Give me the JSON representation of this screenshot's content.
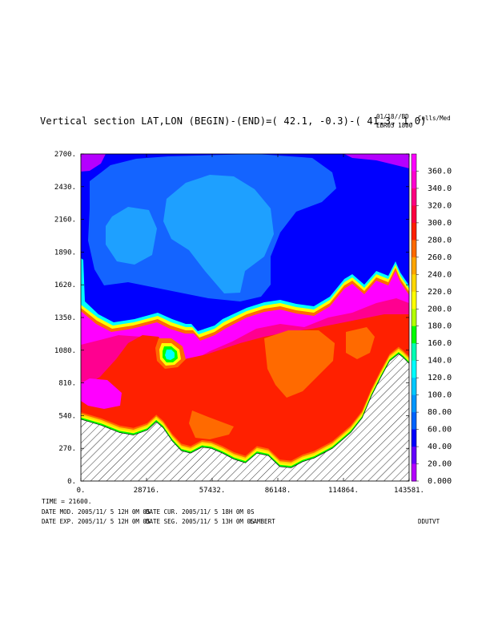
{
  "header": {
    "title": "Vertical section LAT,LON (BEGIN)-(END)=( 42.1, -0.3)-( 41.3,  1.0)",
    "date_line": "01/18//BD",
    "run_line": "EBR05 1800",
    "units": "Cells/Med"
  },
  "chart_data": {
    "type": "heatmap",
    "title": "Vertical section LAT,LON (BEGIN)-(END)=( 42.1, -0.3)-( 41.3,  1.0)",
    "xlabel": "",
    "ylabel": "",
    "x_ticks": [
      "0.",
      "28716.",
      "57432.",
      "86148.",
      "114864.",
      "143581."
    ],
    "x_tick_values": [
      0,
      28716,
      57432,
      86148,
      114864,
      143581
    ],
    "y_ticks": [
      "0.",
      "270.",
      "540.",
      "810.",
      "1080.",
      "1350.",
      "1620.",
      "1890.",
      "2160.",
      "2430.",
      "2700."
    ],
    "y_tick_values": [
      0,
      270,
      540,
      810,
      1080,
      1350,
      1620,
      1890,
      2160,
      2430,
      2700
    ],
    "xlim": [
      0,
      143581
    ],
    "ylim": [
      0,
      2700
    ],
    "colorbar": {
      "labels": [
        "360.0",
        "340.0",
        "320.0",
        "300.0",
        "280.0",
        "260.0",
        "240.0",
        "220.0",
        "200.0",
        "180.0",
        "160.0",
        "140.0",
        "120.0",
        "100.0",
        "80.00",
        "60.00",
        "40.00",
        "20.00",
        "0.000"
      ],
      "colors": [
        "#ff00ff",
        "#ff00d0",
        "#ff0080",
        "#ff0040",
        "#ff2000",
        "#ff6a00",
        "#ffa500",
        "#ffd700",
        "#ffff00",
        "#b4ff00",
        "#00ff00",
        "#00ffb4",
        "#00ffff",
        "#00c8ff",
        "#0096ff",
        "#0064ff",
        "#0000ff",
        "#6400ff",
        "#b400ff"
      ]
    },
    "region_colors": {
      "light_blue": "#1ea0ff",
      "mid_blue": "#1464ff",
      "deep_blue": "#0000ff",
      "purple": "#b400ff",
      "pink": "#ff00ff",
      "magenta": "#ff0090",
      "red": "#ff2000",
      "orange": "#ff6a00",
      "terrain_hatch": "#000000"
    },
    "terrain": [
      [
        0,
        510
      ],
      [
        9000,
        460
      ],
      [
        17000,
        400
      ],
      [
        23000,
        380
      ],
      [
        29000,
        420
      ],
      [
        33000,
        490
      ],
      [
        36000,
        440
      ],
      [
        40000,
        330
      ],
      [
        44000,
        250
      ],
      [
        48000,
        230
      ],
      [
        53000,
        280
      ],
      [
        57000,
        270
      ],
      [
        62000,
        230
      ],
      [
        67000,
        180
      ],
      [
        72000,
        150
      ],
      [
        77000,
        230
      ],
      [
        82000,
        210
      ],
      [
        87000,
        120
      ],
      [
        92000,
        110
      ],
      [
        97000,
        160
      ],
      [
        102000,
        190
      ],
      [
        110000,
        270
      ],
      [
        118000,
        400
      ],
      [
        123000,
        520
      ],
      [
        127000,
        700
      ],
      [
        131000,
        850
      ],
      [
        135000,
        990
      ],
      [
        139000,
        1050
      ],
      [
        141000,
        1020
      ],
      [
        143581,
        970
      ]
    ],
    "interface": [
      [
        0,
        1500
      ],
      [
        6000,
        1380
      ],
      [
        12000,
        1320
      ],
      [
        18000,
        1340
      ],
      [
        26000,
        1380
      ],
      [
        31000,
        1290
      ],
      [
        37000,
        1300
      ],
      [
        42000,
        1360
      ],
      [
        45000,
        1290
      ],
      [
        50000,
        1290
      ],
      [
        55000,
        1330
      ],
      [
        60000,
        1370
      ],
      [
        67000,
        1360
      ],
      [
        75000,
        1450
      ],
      [
        80000,
        1480
      ],
      [
        85000,
        1430
      ],
      [
        91000,
        1480
      ],
      [
        96000,
        1470
      ],
      [
        100000,
        1460
      ],
      [
        107000,
        1440
      ],
      [
        112000,
        1560
      ],
      [
        117000,
        1510
      ],
      [
        122000,
        1660
      ],
      [
        126000,
        1680
      ],
      [
        130000,
        1600
      ],
      [
        134000,
        1680
      ],
      [
        138000,
        1740
      ],
      [
        141000,
        1630
      ],
      [
        143581,
        1560
      ]
    ],
    "left_edge_interface": [
      [
        0,
        1750
      ],
      [
        1200,
        1760
      ],
      [
        1800,
        1500
      ]
    ]
  },
  "footer": {
    "time_line": "TIME =    21600.",
    "date_mod": "DATE MOD. 2005/11/ 5  12H 0M 0S",
    "date_cur": "DATE CUR. 2005/11/ 5  18H 0M 0S",
    "date_exp": "DATE EXP. 2005/11/ 5  12H 0M 0S",
    "date_seg": "DATE SEG. 2005/11/ 5  13H 0M 0S",
    "projection": "LAMBERT",
    "program": "DDUTVT"
  }
}
